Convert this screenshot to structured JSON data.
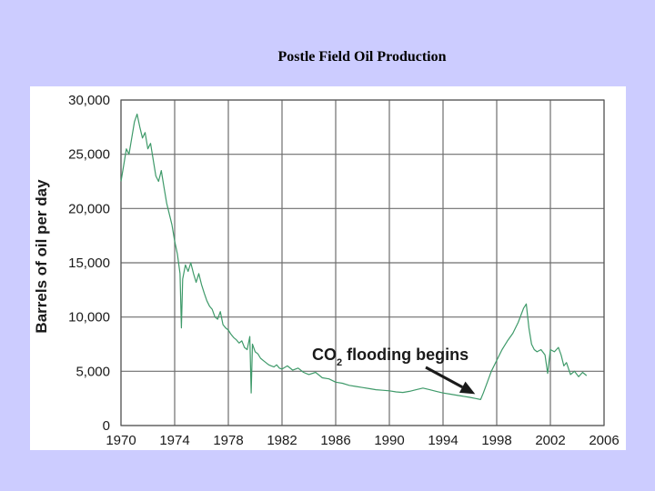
{
  "slide": {
    "title": "Postle Field Oil Production",
    "background": "#ccccff"
  },
  "chart_data": {
    "type": "line",
    "title": "",
    "xlabel": "",
    "ylabel": "Barrels of oil per day",
    "xlim": [
      1970,
      2006
    ],
    "ylim": [
      0,
      30000
    ],
    "x_ticks": [
      "1970",
      "1974",
      "1978",
      "1982",
      "1986",
      "1990",
      "1994",
      "1998",
      "2002",
      "2006"
    ],
    "y_ticks": [
      "0",
      "5,000",
      "10,000",
      "15,000",
      "20,000",
      "25,000",
      "30,000"
    ],
    "grid": true,
    "line_color": "#3f9a6a",
    "annotation": {
      "text_main": "CO",
      "text_sub": "2",
      "text_rest": " flooding begins",
      "arrow_to": [
        1996.8,
        2400
      ]
    },
    "series": [
      {
        "values": [
          [
            1970.0,
            22500
          ],
          [
            1970.2,
            24000
          ],
          [
            1970.4,
            25500
          ],
          [
            1970.6,
            25000
          ],
          [
            1970.8,
            26500
          ],
          [
            1971.0,
            28000
          ],
          [
            1971.2,
            28700
          ],
          [
            1971.4,
            27500
          ],
          [
            1971.6,
            26500
          ],
          [
            1971.8,
            27000
          ],
          [
            1972.0,
            25500
          ],
          [
            1972.2,
            26000
          ],
          [
            1972.4,
            24500
          ],
          [
            1972.6,
            23000
          ],
          [
            1972.8,
            22500
          ],
          [
            1973.0,
            23500
          ],
          [
            1973.2,
            22000
          ],
          [
            1973.4,
            20500
          ],
          [
            1973.6,
            19500
          ],
          [
            1973.8,
            18500
          ],
          [
            1974.0,
            17000
          ],
          [
            1974.2,
            15800
          ],
          [
            1974.4,
            14000
          ],
          [
            1974.5,
            9000
          ],
          [
            1974.6,
            13500
          ],
          [
            1974.8,
            14800
          ],
          [
            1975.0,
            14200
          ],
          [
            1975.2,
            15000
          ],
          [
            1975.4,
            14000
          ],
          [
            1975.6,
            13200
          ],
          [
            1975.8,
            14000
          ],
          [
            1976.0,
            13000
          ],
          [
            1976.2,
            12200
          ],
          [
            1976.4,
            11500
          ],
          [
            1976.6,
            11000
          ],
          [
            1976.8,
            10700
          ],
          [
            1977.0,
            10000
          ],
          [
            1977.2,
            9800
          ],
          [
            1977.4,
            10500
          ],
          [
            1977.6,
            9300
          ],
          [
            1977.8,
            9000
          ],
          [
            1978.0,
            8800
          ],
          [
            1978.2,
            8400
          ],
          [
            1978.4,
            8100
          ],
          [
            1978.6,
            7900
          ],
          [
            1978.8,
            7600
          ],
          [
            1979.0,
            7800
          ],
          [
            1979.2,
            7200
          ],
          [
            1979.4,
            7000
          ],
          [
            1979.6,
            8200
          ],
          [
            1979.7,
            3000
          ],
          [
            1979.8,
            7500
          ],
          [
            1980.0,
            6800
          ],
          [
            1980.2,
            6600
          ],
          [
            1980.4,
            6200
          ],
          [
            1980.6,
            6000
          ],
          [
            1980.8,
            5800
          ],
          [
            1981.0,
            5600
          ],
          [
            1981.2,
            5500
          ],
          [
            1981.4,
            5400
          ],
          [
            1981.6,
            5600
          ],
          [
            1981.8,
            5300
          ],
          [
            1982.0,
            5200
          ],
          [
            1982.4,
            5500
          ],
          [
            1982.8,
            5100
          ],
          [
            1983.2,
            5300
          ],
          [
            1983.6,
            4900
          ],
          [
            1984.0,
            4700
          ],
          [
            1984.5,
            4900
          ],
          [
            1985.0,
            4400
          ],
          [
            1985.5,
            4300
          ],
          [
            1986.0,
            4000
          ],
          [
            1986.5,
            3900
          ],
          [
            1987.0,
            3700
          ],
          [
            1987.5,
            3600
          ],
          [
            1988.0,
            3500
          ],
          [
            1988.5,
            3400
          ],
          [
            1989.0,
            3300
          ],
          [
            1989.5,
            3250
          ],
          [
            1990.0,
            3200
          ],
          [
            1990.5,
            3100
          ],
          [
            1991.0,
            3050
          ],
          [
            1991.5,
            3150
          ],
          [
            1992.0,
            3300
          ],
          [
            1992.5,
            3450
          ],
          [
            1993.0,
            3300
          ],
          [
            1993.5,
            3150
          ],
          [
            1994.0,
            3000
          ],
          [
            1994.5,
            2900
          ],
          [
            1995.0,
            2800
          ],
          [
            1995.5,
            2700
          ],
          [
            1996.0,
            2600
          ],
          [
            1996.4,
            2500
          ],
          [
            1996.8,
            2400
          ],
          [
            1997.0,
            3000
          ],
          [
            1997.3,
            4000
          ],
          [
            1997.6,
            5000
          ],
          [
            1998.0,
            6000
          ],
          [
            1998.4,
            7000
          ],
          [
            1998.8,
            7800
          ],
          [
            1999.2,
            8500
          ],
          [
            1999.6,
            9500
          ],
          [
            2000.0,
            10800
          ],
          [
            2000.2,
            11200
          ],
          [
            2000.4,
            9000
          ],
          [
            2000.6,
            7500
          ],
          [
            2000.8,
            7000
          ],
          [
            2001.0,
            6800
          ],
          [
            2001.3,
            7000
          ],
          [
            2001.6,
            6500
          ],
          [
            2001.8,
            4800
          ],
          [
            2002.0,
            7000
          ],
          [
            2002.3,
            6800
          ],
          [
            2002.6,
            7200
          ],
          [
            2002.8,
            6500
          ],
          [
            2003.0,
            5500
          ],
          [
            2003.2,
            5800
          ],
          [
            2003.5,
            4700
          ],
          [
            2003.8,
            5000
          ],
          [
            2004.1,
            4500
          ],
          [
            2004.4,
            4900
          ],
          [
            2004.7,
            4600
          ]
        ]
      }
    ]
  }
}
